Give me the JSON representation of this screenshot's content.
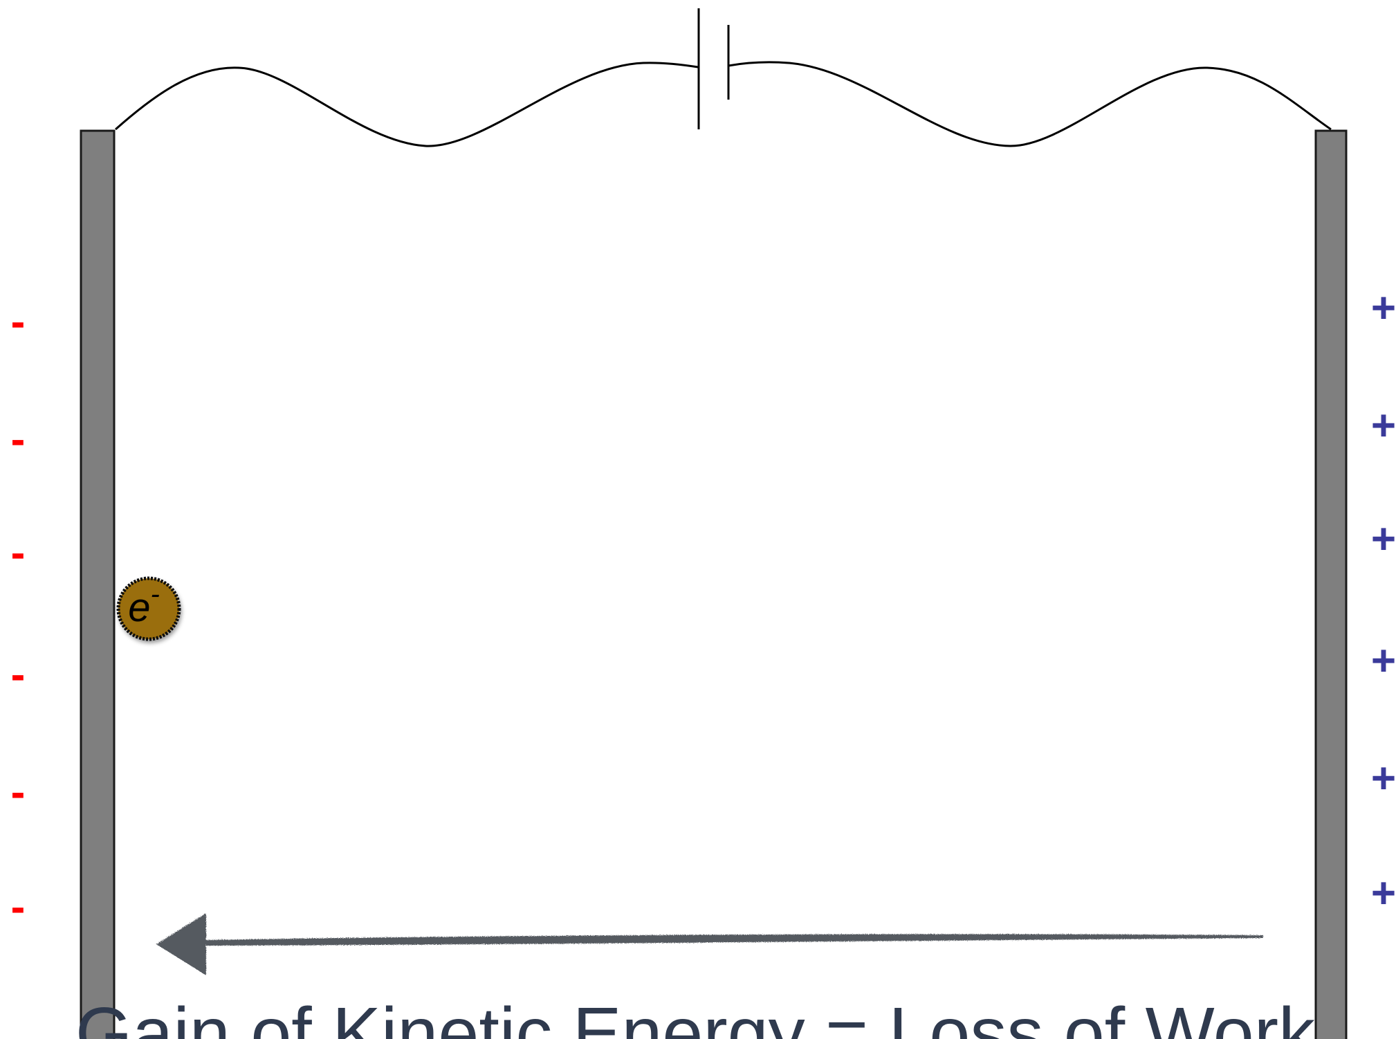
{
  "colors": {
    "plate_fill": "#7f7f7f",
    "plate_stroke": "#1a1a1a",
    "wire": "#000000",
    "negative_sign": "#ff0000",
    "positive_sign": "#3a3a9a",
    "electron_fill": "#9a6e0a",
    "electron_text": "#000000",
    "arrow": "#555a60",
    "caption_text": "#2f3a4e"
  },
  "negative_charges": [
    "-",
    "-",
    "-",
    "-",
    "-",
    "-"
  ],
  "positive_charges": [
    "+",
    "+",
    "+",
    "+",
    "+",
    "+"
  ],
  "electron": {
    "symbol": "e",
    "charge": "-"
  },
  "caption": "Gain of Kinetic Energy = Loss of Work"
}
